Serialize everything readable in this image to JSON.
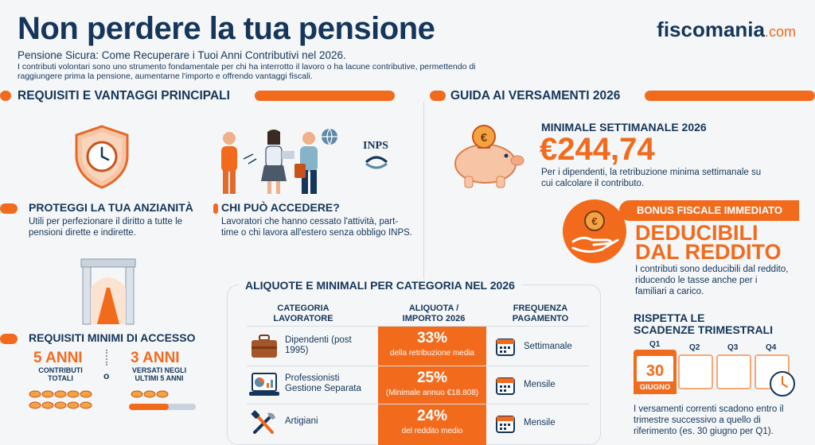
{
  "header": {
    "title": "Non perdere la tua pensione",
    "logo_main": "fiscomania",
    "logo_suffix": ".com",
    "subtitle": "Pensione Sicura: Come Recuperare i Tuoi Anni Contributivi nel 2026.",
    "intro": "I contributi volontari sono uno strumento fondamentale per chi ha interrotto il lavoro o ha lacune contributive, permettendo di raggiungere prima la pensione, aumentarne l'importo e offrendo vantaggi fiscali."
  },
  "left": {
    "section_title": "REQUISITI E VANTAGGI PRINCIPALI",
    "protect": {
      "title": "PROTEGGI LA TUA ANZIANITÀ",
      "text": "Utili per perfezionare il diritto a tutte le pensioni dirette e indirette."
    },
    "who": {
      "title": "CHI PUÒ ACCEDERE?",
      "text": "Lavoratori che hanno cessato l'attività, part-time o chi lavora all'estero senza obbligo INPS.",
      "inps": "INPS"
    },
    "requirements": {
      "title": "REQUISITI MINIMI DI ACCESSO",
      "opt1_big": "5 ANNI",
      "opt1_sub": "CONTRIBUTI TOTALI",
      "or": "o",
      "opt2_big": "3 ANNI",
      "opt2_sub": "VERSATI NEGLI ULTIMI 5 ANNI"
    }
  },
  "right": {
    "section_title": "GUIDA AI VERSAMENTI 2026",
    "minimale": {
      "title": "MINIMALE SETTIMANALE 2026",
      "value": "€244,74",
      "text": "Per i dipendenti, la retribuzione minima settimanale su cui calcolare il contributo."
    },
    "bonus": {
      "band": "BONUS FISCALE IMMEDIATO",
      "line1": "DEDUCIBILI",
      "line2": "DAL REDDITO",
      "text": "I contributi sono deducibili dal reddito, riducendo le tasse anche per i familiari a carico."
    },
    "deadlines": {
      "title_line1": "RISPETTA LE",
      "title_line2": "SCADENZE TRIMESTRALI",
      "quarters": [
        "Q1",
        "Q2",
        "Q3",
        "Q4"
      ],
      "day": "30",
      "month": "GIUGNO",
      "text": "I versamenti correnti scadono entro il trimestre successivo a quello di riferimento (es. 30 giugno per Q1)."
    }
  },
  "table": {
    "title": "ALIQUOTE E MINIMALI PER CATEGORIA NEL 2026",
    "headers": {
      "category": "CATEGORIA LAVORATORE",
      "rate": "ALIQUOTA / IMPORTO 2026",
      "frequency": "FREQUENZA PAGAMENTO"
    },
    "rows": [
      {
        "category": "Dipendenti (post 1995)",
        "rate": "33%",
        "rate_note": "della retribuzione media",
        "frequency": "Settimanale",
        "icon": "briefcase-icon"
      },
      {
        "category": "Professionisti Gestione Separata",
        "rate": "25%",
        "rate_note": "(Minimale annuo €18.808)",
        "frequency": "Mensile",
        "icon": "laptop-chart-icon"
      },
      {
        "category": "Artigiani",
        "rate": "24%",
        "rate_note": "del reddito medio",
        "frequency": "Mensile",
        "icon": "tools-icon"
      }
    ]
  },
  "colors": {
    "navy": "#15365a",
    "orange": "#f26b1d",
    "background": "#f4f6f8"
  }
}
